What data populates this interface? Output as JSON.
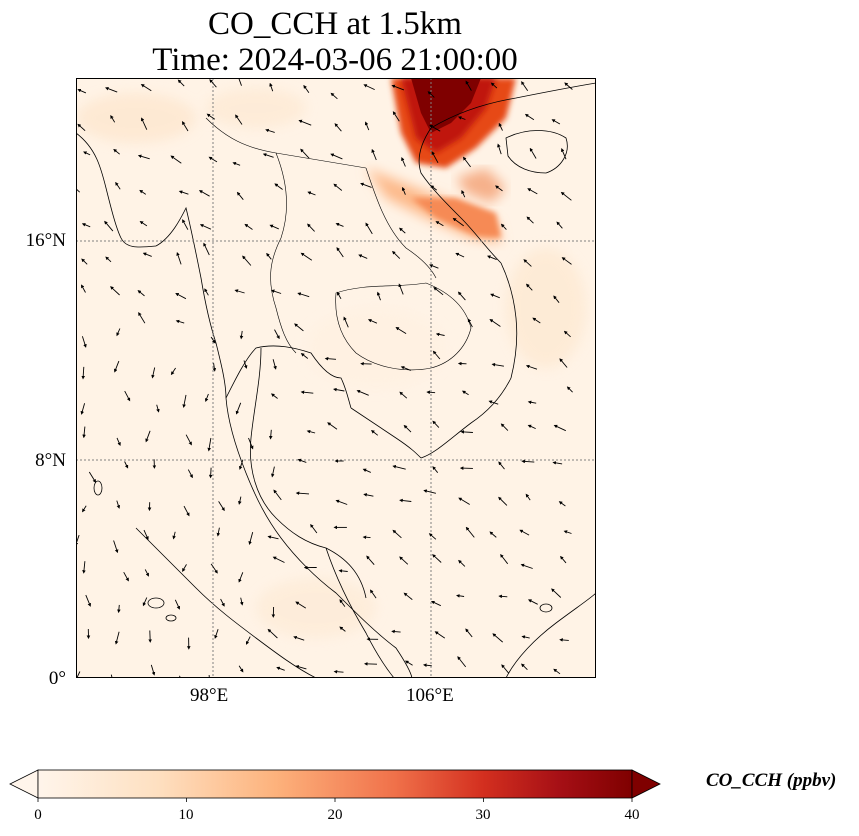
{
  "title": {
    "line1": "CO_CCH at 1.5km",
    "line2": "Time: 2024-03-06 21:00:00"
  },
  "map": {
    "lat_labels": [
      "16°N",
      "8°N",
      "0°"
    ],
    "lon_labels": [
      "98°E",
      "106°E"
    ],
    "extent": {
      "lon": [
        93,
        112
      ],
      "lat": [
        0,
        22
      ]
    },
    "gridlines": {
      "lon": [
        98,
        106
      ],
      "lat": [
        0,
        8,
        16
      ],
      "style": "dotted gray"
    },
    "plume_location": "northern Vietnam / Gulf of Tonkin, extending north of the frame",
    "background_level": "near 0-5 ppbv over most of domain"
  },
  "colorbar": {
    "label": "CO_CCH (ppbv)",
    "ticks": [
      "0",
      "10",
      "20",
      "30",
      "40"
    ],
    "range": [
      0,
      40
    ],
    "extend": "both",
    "colors": [
      "#fff5eb",
      "#fdd9b4",
      "#fdae6b",
      "#f16913",
      "#d94801",
      "#a50f15",
      "#7f0000"
    ]
  },
  "colors": {
    "frame": "#000000",
    "coastline": "#000000",
    "grid": "#808080"
  }
}
